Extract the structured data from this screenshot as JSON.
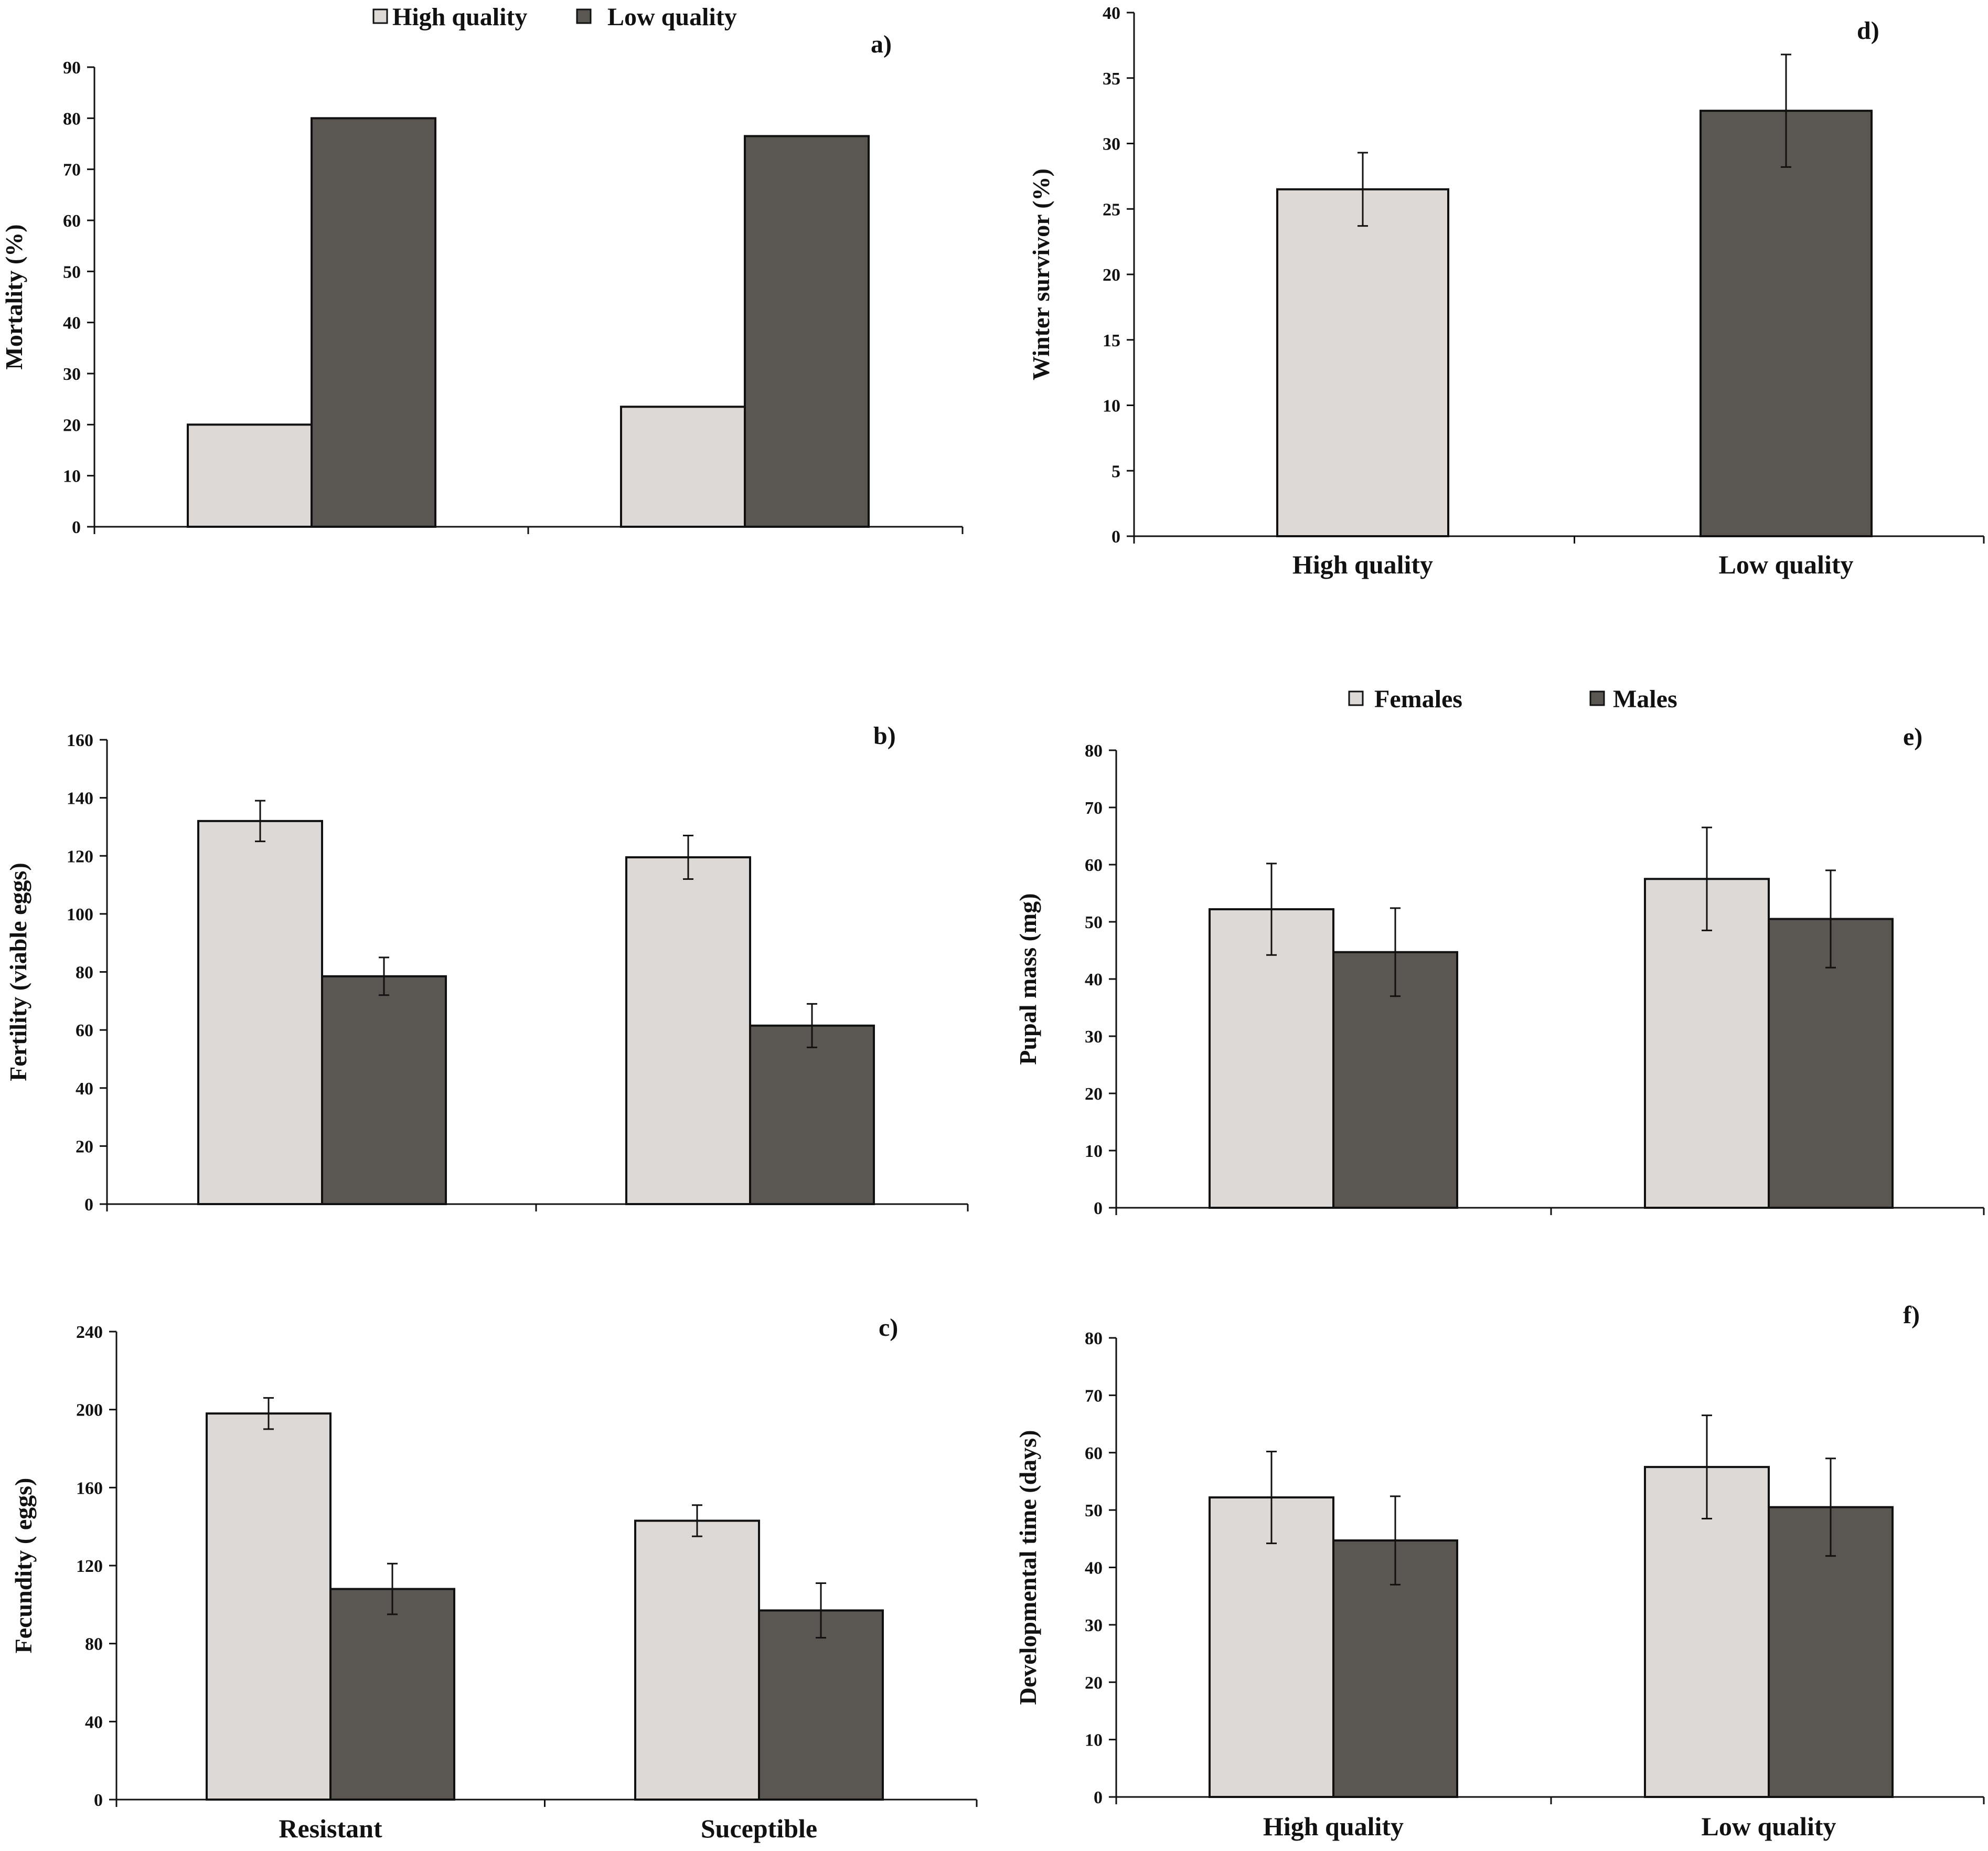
{
  "colors": {
    "light": "#dcd9d6",
    "dark": "#5a5752",
    "stroke": "#111111"
  },
  "legends": {
    "top": {
      "items": [
        {
          "label": "High quality",
          "color": "light"
        },
        {
          "label": "Low quality",
          "color": "dark"
        }
      ]
    },
    "sex": {
      "items": [
        {
          "label": "Females",
          "color": "light"
        },
        {
          "label": "Males",
          "color": "dark"
        }
      ]
    }
  },
  "chart_data": [
    {
      "id": "a",
      "panel_label": "a)",
      "type": "bar",
      "ylabel": "Mortality (%)",
      "ylim": [
        0,
        90
      ],
      "yticks": [
        0,
        10,
        20,
        30,
        40,
        50,
        60,
        70,
        80,
        90
      ],
      "categories": [
        "",
        ""
      ],
      "show_category_labels": false,
      "series": [
        {
          "name": "High quality",
          "color": "light",
          "values": [
            20,
            23.5
          ]
        },
        {
          "name": "Low quality",
          "color": "dark",
          "values": [
            80,
            76.5
          ]
        }
      ]
    },
    {
      "id": "b",
      "panel_label": "b)",
      "type": "bar",
      "ylabel": "Fertility (viable eggs)",
      "ylim": [
        0,
        160
      ],
      "yticks": [
        0,
        20,
        40,
        60,
        80,
        100,
        120,
        140,
        160
      ],
      "categories": [
        "",
        ""
      ],
      "show_category_labels": false,
      "series": [
        {
          "name": "High quality",
          "color": "light",
          "values": [
            132,
            119.5
          ],
          "errors": [
            7,
            7.5
          ]
        },
        {
          "name": "Low quality",
          "color": "dark",
          "values": [
            78.5,
            61.5
          ],
          "errors": [
            6.5,
            7.5
          ]
        }
      ]
    },
    {
      "id": "c",
      "panel_label": "c)",
      "type": "bar",
      "ylabel": "Fecundity ( eggs)",
      "ylim": [
        0,
        240
      ],
      "yticks": [
        0,
        40,
        80,
        120,
        160,
        200,
        240
      ],
      "categories": [
        "Resistant",
        "Suceptible"
      ],
      "show_category_labels": true,
      "series": [
        {
          "name": "High quality",
          "color": "light",
          "values": [
            198,
            143
          ],
          "errors": [
            8,
            8
          ]
        },
        {
          "name": "Low quality",
          "color": "dark",
          "values": [
            108,
            97
          ],
          "errors": [
            13,
            14
          ]
        }
      ]
    },
    {
      "id": "d",
      "panel_label": "d)",
      "type": "bar",
      "ylabel": "Winter survivor (%)",
      "ylim": [
        0,
        40
      ],
      "yticks": [
        0,
        5,
        10,
        15,
        20,
        25,
        30,
        35,
        40
      ],
      "categories": [
        "High quality",
        "Low quality"
      ],
      "show_category_labels": true,
      "series": [
        {
          "name": "Winter survivor",
          "color": [
            "light",
            "dark"
          ],
          "values": [
            26.5,
            32.5
          ],
          "errors": [
            2.8,
            4.3
          ]
        }
      ]
    },
    {
      "id": "e",
      "panel_label": "e)",
      "type": "bar",
      "ylabel": "Pupal mass (mg)",
      "ylim": [
        0,
        80
      ],
      "yticks": [
        0,
        10,
        20,
        30,
        40,
        50,
        60,
        70,
        80
      ],
      "categories": [
        "",
        ""
      ],
      "show_category_labels": false,
      "series": [
        {
          "name": "Females",
          "color": "light",
          "values": [
            52.2,
            57.5
          ],
          "errors": [
            8,
            9
          ]
        },
        {
          "name": "Males",
          "color": "dark",
          "values": [
            44.7,
            50.5
          ],
          "errors": [
            7.7,
            8.5
          ]
        }
      ]
    },
    {
      "id": "f",
      "panel_label": "f)",
      "type": "bar",
      "ylabel": "Developmental time (days)",
      "ylim": [
        0,
        80
      ],
      "yticks": [
        0,
        10,
        20,
        30,
        40,
        50,
        60,
        70,
        80
      ],
      "categories": [
        "High quality",
        "Low quality"
      ],
      "show_category_labels": true,
      "series": [
        {
          "name": "Females",
          "color": "light",
          "values": [
            52.2,
            57.5
          ],
          "errors": [
            8,
            9
          ]
        },
        {
          "name": "Males",
          "color": "dark",
          "values": [
            44.7,
            50.5
          ],
          "errors": [
            7.7,
            8.5
          ]
        }
      ]
    }
  ]
}
